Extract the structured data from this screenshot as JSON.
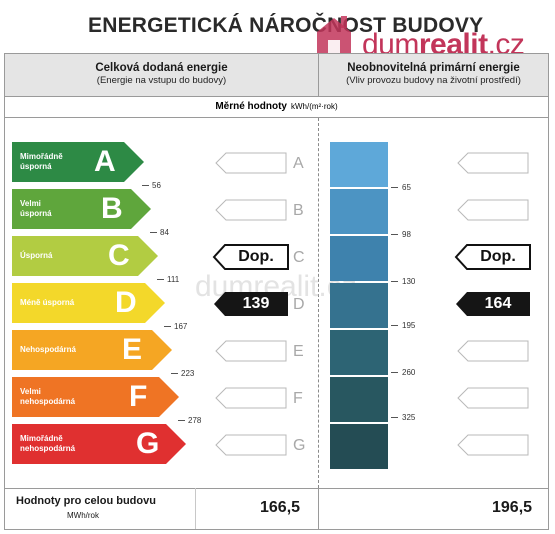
{
  "title": "ENERGETICKÁ NÁROČNOST BUDOVY",
  "logo": {
    "prefix": "dum",
    "bold": "realit",
    "suffix": ".cz",
    "color": "#c2355a"
  },
  "watermark": "dumrealit.cz",
  "left_header": {
    "title": "Celková dodaná energie",
    "subtitle": "(Energie na vstupu do budovy)"
  },
  "right_header": {
    "title": "Neobnovitelná primární energie",
    "subtitle": "(Vliv provozu budovy na životní prostředí)"
  },
  "measure": {
    "label": "Měrné hodnoty",
    "unit": "kWh/(m²·rok)"
  },
  "bands": [
    {
      "letter": "A",
      "line1": "Mimořádně",
      "line2": "úsporná",
      "color": "#2d8a45"
    },
    {
      "letter": "B",
      "line1": "Velmi",
      "line2": "úsporná",
      "color": "#5fa63c"
    },
    {
      "letter": "C",
      "line1": "Úsporná",
      "line2": "",
      "color": "#b2cc42"
    },
    {
      "letter": "D",
      "line1": "Méně úsporná",
      "line2": "",
      "color": "#f3d82a"
    },
    {
      "letter": "E",
      "line1": "Nehospodárná",
      "line2": "",
      "color": "#f5a623"
    },
    {
      "letter": "F",
      "line1": "Velmi",
      "line2": "nehospodárná",
      "color": "#ef7424"
    },
    {
      "letter": "G",
      "line1": "Mimořádně",
      "line2": "nehospodárná",
      "color": "#e03030"
    }
  ],
  "left_thresholds": [
    "56",
    "84",
    "111",
    "167",
    "223",
    "278"
  ],
  "right_thresholds": [
    "65",
    "98",
    "130",
    "195",
    "260",
    "325"
  ],
  "right_scale_colors": [
    "#5ea8d9",
    "#4c94c3",
    "#3e82ad",
    "#35728f",
    "#2d6474",
    "#285760",
    "#244c54"
  ],
  "left_markers": {
    "dop": {
      "label": "Dop.",
      "band": "C"
    },
    "actual": {
      "value": "139",
      "band": "D"
    }
  },
  "right_markers": {
    "dop": {
      "label": "Dop.",
      "band": "C"
    },
    "actual": {
      "value": "164",
      "band": "D"
    }
  },
  "bottom": {
    "label": "Hodnoty pro celou budovu",
    "unit": "MWh/rok",
    "left_value": "166,5",
    "right_value": "196,5"
  }
}
